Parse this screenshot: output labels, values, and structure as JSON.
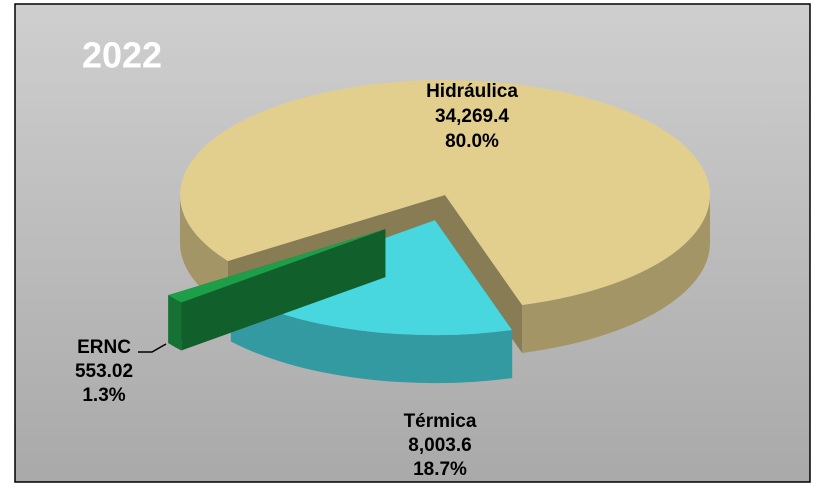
{
  "chart_data": {
    "type": "pie3d",
    "title": "2022",
    "categories": [
      "Hidráulica",
      "Térmica",
      "ERNC"
    ],
    "values": [
      34269.4,
      8003.6,
      553.02
    ],
    "value_labels": [
      "34,269.4",
      "8,003.6",
      "553.02"
    ],
    "percentages": [
      80.0,
      18.7,
      1.3
    ],
    "percentage_labels": [
      "80.0%",
      "18.7%",
      "1.3%"
    ],
    "colors": [
      "#e2cf8d",
      "#48d6df",
      "#1d9e48"
    ]
  }
}
